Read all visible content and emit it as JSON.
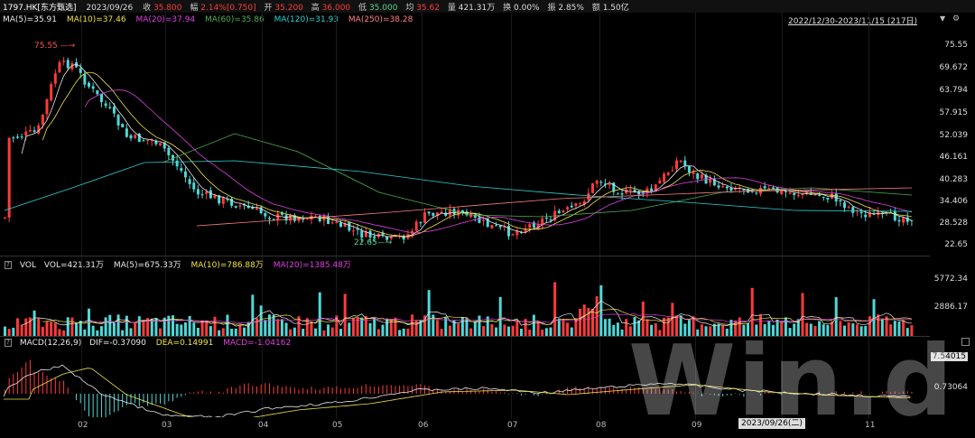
{
  "header": {
    "ticker": "1797.HK[东方甄选]",
    "date": "2023/09/26",
    "close_label": "收",
    "close": "35.800",
    "change_label": "幅",
    "change": "2.14%[0.750]",
    "open_label": "开",
    "open": "35.200",
    "high_label": "高",
    "high": "36.000",
    "low_label": "低",
    "low": "35.000",
    "avg_label": "均",
    "avg": "35.62",
    "vol_label": "量",
    "vol": "421.31万",
    "turnover_label": "换",
    "turnover": "0.00%",
    "amp_label": "振",
    "amp": "2.85%",
    "amount_label": "额",
    "amount": "1.50亿",
    "range": "2022/12/30-2023/11/15 (217日)"
  },
  "ma_legend": [
    {
      "label": "MA(5)=35.91",
      "color": "#e8e8e8"
    },
    {
      "label": "MA(10)=37.46",
      "color": "#f0e34a"
    },
    {
      "label": "MA(20)=37.94",
      "color": "#e040e0"
    },
    {
      "label": "MA(60)=35.86",
      "color": "#4caf50"
    },
    {
      "label": "MA(120)=31.93",
      "color": "#30d0d0"
    },
    {
      "label": "MA(250)=38.28",
      "color": "#ff8080"
    }
  ],
  "price_axis": [
    "75.55",
    "69.672",
    "63.794",
    "57.915",
    "52.039",
    "46.161",
    "40.283",
    "34.406",
    "28.528",
    "22.65"
  ],
  "annotations": {
    "high": "75.55",
    "low": "22.65"
  },
  "vol_legend": {
    "q": "?",
    "title": "VOL",
    "items": [
      {
        "label": "VOL=421.31万",
        "color": "#e8e8e8"
      },
      {
        "label": "MA(5)=675.33万",
        "color": "#e8e8e8"
      },
      {
        "label": "MA(10)=786.88万",
        "color": "#f0e34a"
      },
      {
        "label": "MA(20)=1385.48万",
        "color": "#e040e0"
      }
    ]
  },
  "vol_axis": [
    "5772.34",
    "2886.17"
  ],
  "macd_legend": {
    "q": "?",
    "items": [
      {
        "label": "MACD(12,26,9)",
        "color": "#e8e8e8"
      },
      {
        "label": "DIF=-0.37090",
        "color": "#e8e8e8"
      },
      {
        "label": "DEA=0.14991",
        "color": "#f0e34a"
      },
      {
        "label": "MACD=-1.04162",
        "color": "#e040e0"
      }
    ]
  },
  "macd_axis": [
    "7.54015",
    "0.73064"
  ],
  "x_axis": [
    "02",
    "03",
    "04",
    "05",
    "06",
    "07",
    "08",
    "09",
    "10",
    "11"
  ],
  "crosshair_date": "2023/09/26(二)",
  "watermark": "Win.d",
  "colors": {
    "up": "#ff3a3a",
    "down": "#4fd8d8",
    "bg": "#000000"
  }
}
